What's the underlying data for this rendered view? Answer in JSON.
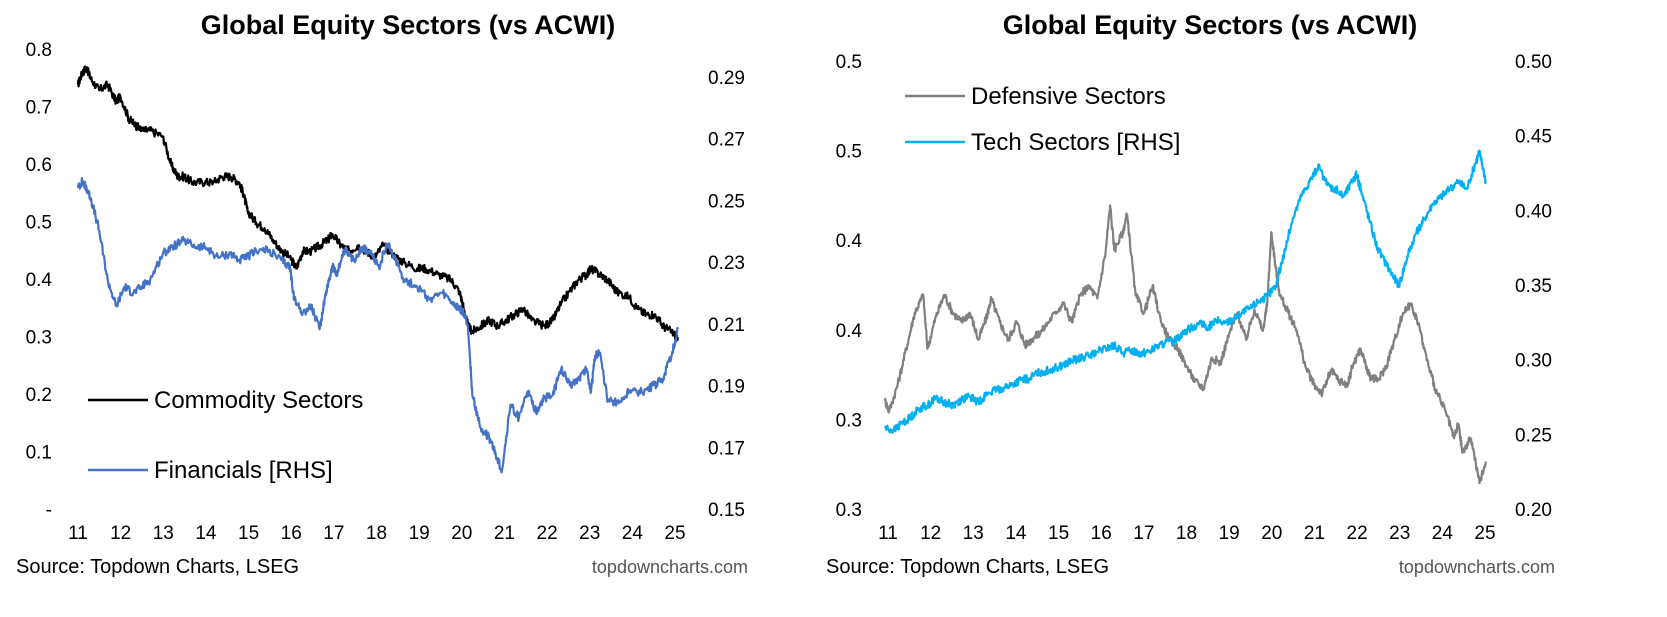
{
  "chart_data": [
    {
      "type": "line",
      "title": "Global Equity Sectors (vs ACWI)",
      "x_tick_labels": [
        "11",
        "12",
        "13",
        "14",
        "15",
        "16",
        "17",
        "18",
        "19",
        "20",
        "21",
        "22",
        "23",
        "24",
        "25"
      ],
      "x_range": [
        2011,
        2025.2
      ],
      "left_axis": {
        "ticks": [
          "-",
          "0.1",
          "0.2",
          "0.3",
          "0.4",
          "0.5",
          "0.6",
          "0.7",
          "0.8"
        ],
        "range": [
          0,
          0.8
        ]
      },
      "right_axis": {
        "ticks": [
          "0.15",
          "0.17",
          "0.19",
          "0.21",
          "0.23",
          "0.25",
          "0.27",
          "0.29"
        ],
        "range": [
          0.15,
          0.29
        ]
      },
      "series": [
        {
          "name": "Commodity Sectors",
          "axis": "left",
          "color": "#000000",
          "x": [
            2011.0,
            2011.1,
            2011.2,
            2011.3,
            2011.5,
            2011.7,
            2011.9,
            2012.0,
            2012.2,
            2012.35,
            2012.5,
            2012.7,
            2013.0,
            2013.2,
            2013.35,
            2013.5,
            2013.7,
            2014.0,
            2014.2,
            2014.4,
            2014.6,
            2014.8,
            2014.9,
            2015.0,
            2015.2,
            2015.4,
            2015.6,
            2015.8,
            2016.0,
            2016.15,
            2016.3,
            2016.5,
            2016.7,
            2016.9,
            2017.0,
            2017.2,
            2017.4,
            2017.6,
            2017.8,
            2018.0,
            2018.2,
            2018.5,
            2018.7,
            2019.0,
            2019.2,
            2019.5,
            2019.8,
            2020.0,
            2020.1,
            2020.2,
            2020.3,
            2020.5,
            2020.7,
            2020.9,
            2021.1,
            2021.3,
            2021.5,
            2021.7,
            2022.0,
            2022.2,
            2022.4,
            2022.6,
            2022.8,
            2023.0,
            2023.1,
            2023.3,
            2023.5,
            2023.7,
            2024.0,
            2024.2,
            2024.4,
            2024.6,
            2024.8,
            2025.0,
            2025.15
          ],
          "values": [
            0.74,
            0.76,
            0.77,
            0.75,
            0.73,
            0.74,
            0.71,
            0.72,
            0.68,
            0.67,
            0.66,
            0.66,
            0.65,
            0.6,
            0.58,
            0.58,
            0.57,
            0.57,
            0.57,
            0.58,
            0.58,
            0.57,
            0.55,
            0.52,
            0.5,
            0.49,
            0.47,
            0.45,
            0.44,
            0.42,
            0.45,
            0.45,
            0.46,
            0.47,
            0.48,
            0.46,
            0.45,
            0.46,
            0.45,
            0.44,
            0.46,
            0.44,
            0.43,
            0.42,
            0.42,
            0.41,
            0.4,
            0.38,
            0.35,
            0.32,
            0.31,
            0.32,
            0.33,
            0.32,
            0.33,
            0.34,
            0.35,
            0.33,
            0.32,
            0.33,
            0.36,
            0.38,
            0.4,
            0.41,
            0.42,
            0.41,
            0.4,
            0.38,
            0.37,
            0.35,
            0.34,
            0.34,
            0.32,
            0.31,
            0.3
          ]
        },
        {
          "name": "Financials [RHS]",
          "axis": "right",
          "color": "#4472c4",
          "x": [
            2011.0,
            2011.1,
            2011.2,
            2011.3,
            2011.5,
            2011.7,
            2011.9,
            2012.1,
            2012.3,
            2012.5,
            2012.7,
            2013.0,
            2013.2,
            2013.5,
            2013.8,
            2014.0,
            2014.3,
            2014.6,
            2014.8,
            2015.0,
            2015.2,
            2015.5,
            2015.8,
            2016.0,
            2016.1,
            2016.3,
            2016.5,
            2016.7,
            2016.8,
            2016.9,
            2017.0,
            2017.1,
            2017.3,
            2017.5,
            2017.7,
            2017.9,
            2018.1,
            2018.3,
            2018.5,
            2018.7,
            2019.0,
            2019.3,
            2019.6,
            2019.9,
            2020.0,
            2020.1,
            2020.2,
            2020.3,
            2020.5,
            2020.7,
            2020.85,
            2021.0,
            2021.2,
            2021.4,
            2021.6,
            2021.8,
            2022.0,
            2022.2,
            2022.4,
            2022.6,
            2022.8,
            2023.0,
            2023.1,
            2023.2,
            2023.3,
            2023.5,
            2023.8,
            2024.0,
            2024.3,
            2024.6,
            2024.8,
            2025.0,
            2025.15
          ],
          "values": [
            0.248,
            0.25,
            0.248,
            0.245,
            0.235,
            0.22,
            0.212,
            0.218,
            0.216,
            0.218,
            0.22,
            0.228,
            0.23,
            0.232,
            0.23,
            0.23,
            0.227,
            0.228,
            0.226,
            0.227,
            0.229,
            0.229,
            0.226,
            0.224,
            0.214,
            0.21,
            0.212,
            0.205,
            0.213,
            0.219,
            0.224,
            0.222,
            0.229,
            0.226,
            0.23,
            0.228,
            0.224,
            0.231,
            0.226,
            0.22,
            0.218,
            0.214,
            0.216,
            0.212,
            0.211,
            0.21,
            0.206,
            0.185,
            0.175,
            0.172,
            0.167,
            0.162,
            0.182,
            0.178,
            0.186,
            0.18,
            0.184,
            0.185,
            0.193,
            0.188,
            0.19,
            0.193,
            0.186,
            0.197,
            0.198,
            0.183,
            0.183,
            0.186,
            0.186,
            0.188,
            0.19,
            0.197,
            0.205
          ]
        }
      ],
      "legend": [
        "Commodity Sectors",
        "Financials [RHS]"
      ],
      "source": "Source: Topdown Charts, LSEG",
      "brand": "topdowncharts.com"
    },
    {
      "type": "line",
      "title": "Global Equity Sectors (vs ACWI)",
      "x_tick_labels": [
        "11",
        "12",
        "13",
        "14",
        "15",
        "16",
        "17",
        "18",
        "19",
        "20",
        "21",
        "22",
        "23",
        "24",
        "25"
      ],
      "x_range": [
        2011,
        2025.2
      ],
      "left_axis": {
        "ticks": [
          "0.3",
          "0.3",
          "0.4",
          "0.4",
          "0.5",
          "0.5"
        ],
        "range": [
          0.3,
          0.55
        ]
      },
      "right_axis": {
        "ticks": [
          "0.20",
          "0.25",
          "0.30",
          "0.35",
          "0.40",
          "0.45",
          "0.50"
        ],
        "range": [
          0.2,
          0.5
        ]
      },
      "series": [
        {
          "name": "Defensive Sectors",
          "axis": "left",
          "color": "#808080",
          "x": [
            2011.0,
            2011.1,
            2011.3,
            2011.5,
            2011.7,
            2011.9,
            2012.0,
            2012.2,
            2012.4,
            2012.6,
            2012.8,
            2013.0,
            2013.2,
            2013.4,
            2013.5,
            2013.7,
            2013.9,
            2014.1,
            2014.3,
            2014.5,
            2014.7,
            2015.0,
            2015.2,
            2015.4,
            2015.6,
            2015.8,
            2016.0,
            2016.2,
            2016.3,
            2016.4,
            2016.6,
            2016.7,
            2016.9,
            2017.1,
            2017.3,
            2017.5,
            2017.7,
            2017.9,
            2018.1,
            2018.3,
            2018.5,
            2018.7,
            2018.9,
            2019.1,
            2019.3,
            2019.5,
            2019.7,
            2019.9,
            2020.0,
            2020.1,
            2020.2,
            2020.3,
            2020.5,
            2020.7,
            2020.9,
            2021.1,
            2021.3,
            2021.5,
            2021.7,
            2021.9,
            2022.0,
            2022.2,
            2022.4,
            2022.6,
            2022.8,
            2023.0,
            2023.2,
            2023.4,
            2023.6,
            2023.8,
            2024.0,
            2024.2,
            2024.4,
            2024.5,
            2024.6,
            2024.8,
            2025.0,
            2025.15
          ],
          "values": [
            0.361,
            0.355,
            0.37,
            0.39,
            0.41,
            0.42,
            0.39,
            0.408,
            0.42,
            0.41,
            0.405,
            0.41,
            0.395,
            0.408,
            0.418,
            0.405,
            0.395,
            0.405,
            0.392,
            0.396,
            0.4,
            0.41,
            0.415,
            0.405,
            0.42,
            0.425,
            0.418,
            0.445,
            0.47,
            0.445,
            0.455,
            0.465,
            0.42,
            0.41,
            0.425,
            0.405,
            0.395,
            0.39,
            0.38,
            0.372,
            0.368,
            0.385,
            0.382,
            0.398,
            0.41,
            0.395,
            0.412,
            0.4,
            0.415,
            0.455,
            0.435,
            0.42,
            0.41,
            0.4,
            0.38,
            0.37,
            0.365,
            0.378,
            0.372,
            0.37,
            0.38,
            0.39,
            0.375,
            0.372,
            0.38,
            0.395,
            0.41,
            0.415,
            0.4,
            0.38,
            0.365,
            0.355,
            0.34,
            0.348,
            0.332,
            0.34,
            0.315,
            0.327
          ]
        },
        {
          "name": "Tech Sectors [RHS]",
          "axis": "right",
          "color": "#00b0f0",
          "x": [
            2011.0,
            2011.2,
            2011.4,
            2011.6,
            2011.8,
            2012.0,
            2012.2,
            2012.4,
            2012.6,
            2012.8,
            2013.0,
            2013.2,
            2013.4,
            2013.6,
            2013.8,
            2014.0,
            2014.2,
            2014.4,
            2014.6,
            2014.8,
            2015.0,
            2015.2,
            2015.4,
            2015.6,
            2015.8,
            2016.0,
            2016.2,
            2016.4,
            2016.6,
            2016.8,
            2017.0,
            2017.2,
            2017.4,
            2017.6,
            2017.8,
            2018.0,
            2018.2,
            2018.4,
            2018.6,
            2018.8,
            2019.0,
            2019.2,
            2019.4,
            2019.6,
            2019.8,
            2020.0,
            2020.2,
            2020.4,
            2020.6,
            2020.8,
            2021.0,
            2021.2,
            2021.4,
            2021.6,
            2021.8,
            2022.0,
            2022.1,
            2022.2,
            2022.4,
            2022.6,
            2022.8,
            2023.0,
            2023.1,
            2023.3,
            2023.5,
            2023.7,
            2023.9,
            2024.1,
            2024.3,
            2024.5,
            2024.7,
            2024.9,
            2025.0,
            2025.15
          ],
          "values": [
            0.255,
            0.253,
            0.258,
            0.262,
            0.268,
            0.27,
            0.275,
            0.272,
            0.27,
            0.274,
            0.276,
            0.272,
            0.278,
            0.28,
            0.282,
            0.284,
            0.287,
            0.288,
            0.292,
            0.293,
            0.295,
            0.297,
            0.3,
            0.302,
            0.303,
            0.306,
            0.308,
            0.31,
            0.305,
            0.307,
            0.305,
            0.306,
            0.309,
            0.312,
            0.313,
            0.318,
            0.322,
            0.325,
            0.322,
            0.327,
            0.325,
            0.328,
            0.332,
            0.335,
            0.34,
            0.343,
            0.35,
            0.372,
            0.395,
            0.41,
            0.42,
            0.43,
            0.418,
            0.415,
            0.41,
            0.42,
            0.425,
            0.415,
            0.395,
            0.375,
            0.365,
            0.355,
            0.35,
            0.37,
            0.385,
            0.395,
            0.405,
            0.41,
            0.415,
            0.42,
            0.415,
            0.432,
            0.44,
            0.42
          ]
        }
      ],
      "legend": [
        "Defensive Sectors",
        "Tech Sectors [RHS]"
      ],
      "source": "Source: Topdown Charts, LSEG",
      "brand": "topdowncharts.com"
    }
  ]
}
